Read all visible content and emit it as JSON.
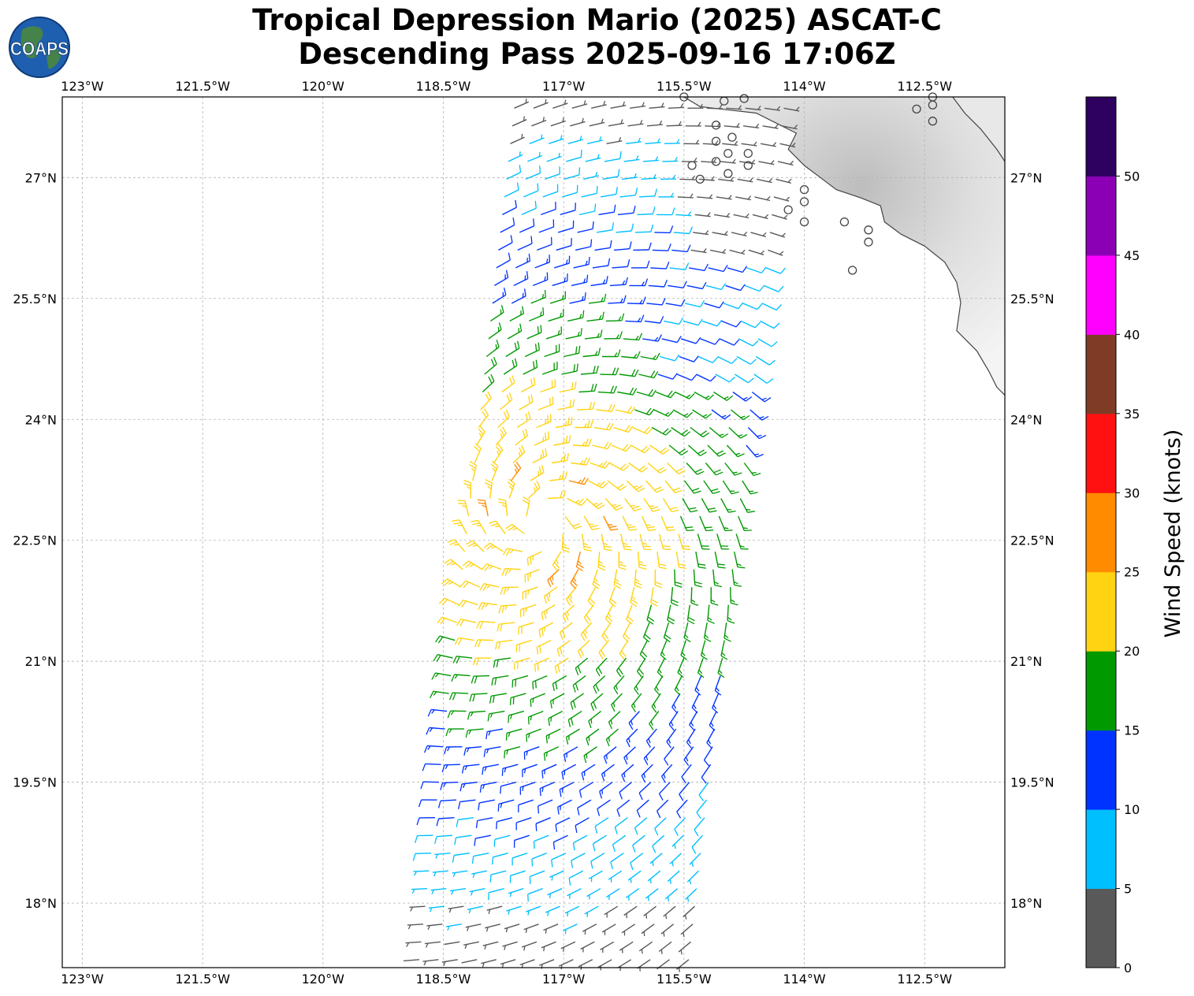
{
  "title": {
    "line1": "Tropical Depression Mario (2025) ASCAT-C",
    "line2": "Descending Pass 2025-09-16 17:06Z"
  },
  "logo": {
    "text": "COAPS"
  },
  "map": {
    "lon_range": [
      -123.25,
      -111.5
    ],
    "lat_range": [
      17.2,
      28.0
    ],
    "lon_ticks": [
      {
        "value": -123.0,
        "label": "123°W"
      },
      {
        "value": -121.5,
        "label": "121.5°W"
      },
      {
        "value": -120.0,
        "label": "120°W"
      },
      {
        "value": -118.5,
        "label": "118.5°W"
      },
      {
        "value": -117.0,
        "label": "117°W"
      },
      {
        "value": -115.5,
        "label": "115.5°W"
      },
      {
        "value": -114.0,
        "label": "114°W"
      },
      {
        "value": -112.5,
        "label": "112.5°W"
      }
    ],
    "lat_ticks": [
      {
        "value": 27.0,
        "label": "27°N"
      },
      {
        "value": 25.5,
        "label": "25.5°N"
      },
      {
        "value": 24.0,
        "label": "24°N"
      },
      {
        "value": 22.5,
        "label": "22.5°N"
      },
      {
        "value": 21.0,
        "label": "21°N"
      },
      {
        "value": 19.5,
        "label": "19.5°N"
      },
      {
        "value": 18.0,
        "label": "18°N"
      }
    ],
    "storm_center": {
      "lon": -117.3,
      "lat": 22.7
    },
    "swath": {
      "top": {
        "lat": 28.0,
        "west_lon": -117.6,
        "east_lon": -114.0
      },
      "bottom": {
        "lat": 17.3,
        "west_lon": -118.8,
        "east_lon": -115.3
      }
    },
    "calm_circles": [
      [
        -115.5,
        28.0
      ],
      [
        -115.0,
        27.95
      ],
      [
        -114.75,
        27.98
      ],
      [
        -115.1,
        27.65
      ],
      [
        -114.9,
        27.5
      ],
      [
        -115.1,
        27.45
      ],
      [
        -114.95,
        27.3
      ],
      [
        -115.1,
        27.2
      ],
      [
        -114.7,
        27.3
      ],
      [
        -114.7,
        27.15
      ],
      [
        -115.4,
        27.15
      ],
      [
        -115.3,
        26.98
      ],
      [
        -114.95,
        27.05
      ],
      [
        -114.0,
        26.85
      ],
      [
        -114.0,
        26.7
      ],
      [
        -114.2,
        26.6
      ],
      [
        -114.0,
        26.45
      ],
      [
        -113.5,
        26.45
      ],
      [
        -113.2,
        26.35
      ],
      [
        -113.2,
        26.2
      ],
      [
        -113.4,
        25.85
      ],
      [
        -112.4,
        28.0
      ],
      [
        -112.4,
        27.9
      ],
      [
        -112.6,
        27.85
      ],
      [
        -112.4,
        27.7
      ]
    ],
    "coastline": [
      [
        -115.5,
        28.0
      ],
      [
        -115.3,
        27.88
      ],
      [
        -115.05,
        27.85
      ],
      [
        -114.6,
        27.8
      ],
      [
        -114.3,
        27.65
      ],
      [
        -114.1,
        27.55
      ],
      [
        -114.2,
        27.35
      ],
      [
        -114.0,
        27.15
      ],
      [
        -113.8,
        27.0
      ],
      [
        -113.6,
        26.85
      ],
      [
        -113.3,
        26.75
      ],
      [
        -113.05,
        26.65
      ],
      [
        -113.0,
        26.45
      ],
      [
        -112.8,
        26.3
      ],
      [
        -112.5,
        26.15
      ],
      [
        -112.25,
        25.95
      ],
      [
        -112.1,
        25.7
      ],
      [
        -112.05,
        25.45
      ],
      [
        -112.1,
        25.1
      ],
      [
        -111.85,
        24.85
      ],
      [
        -111.7,
        24.6
      ],
      [
        -111.6,
        24.4
      ],
      [
        -111.5,
        24.3
      ]
    ],
    "coastline_north": [
      [
        -112.15,
        28.0
      ],
      [
        -112.0,
        27.8
      ],
      [
        -111.8,
        27.6
      ],
      [
        -111.6,
        27.35
      ],
      [
        -111.5,
        27.2
      ]
    ]
  },
  "colorbar": {
    "label": "Wind Speed (knots)",
    "segments": [
      {
        "min": 0,
        "max": 5,
        "color": "#595959"
      },
      {
        "min": 5,
        "max": 10,
        "color": "#00bfff"
      },
      {
        "min": 10,
        "max": 15,
        "color": "#0033ff"
      },
      {
        "min": 15,
        "max": 20,
        "color": "#009900"
      },
      {
        "min": 20,
        "max": 25,
        "color": "#ffd311"
      },
      {
        "min": 25,
        "max": 30,
        "color": "#ff8c00"
      },
      {
        "min": 30,
        "max": 35,
        "color": "#ff1111"
      },
      {
        "min": 35,
        "max": 40,
        "color": "#7f3b26"
      },
      {
        "min": 40,
        "max": 45,
        "color": "#ff00ff"
      },
      {
        "min": 45,
        "max": 50,
        "color": "#8b00b4"
      },
      {
        "min": 50,
        "max": 55,
        "color": "#2e0060"
      }
    ],
    "tick_labels": [
      "0",
      "5",
      "10",
      "15",
      "20",
      "25",
      "30",
      "35",
      "40",
      "45",
      "50"
    ]
  }
}
